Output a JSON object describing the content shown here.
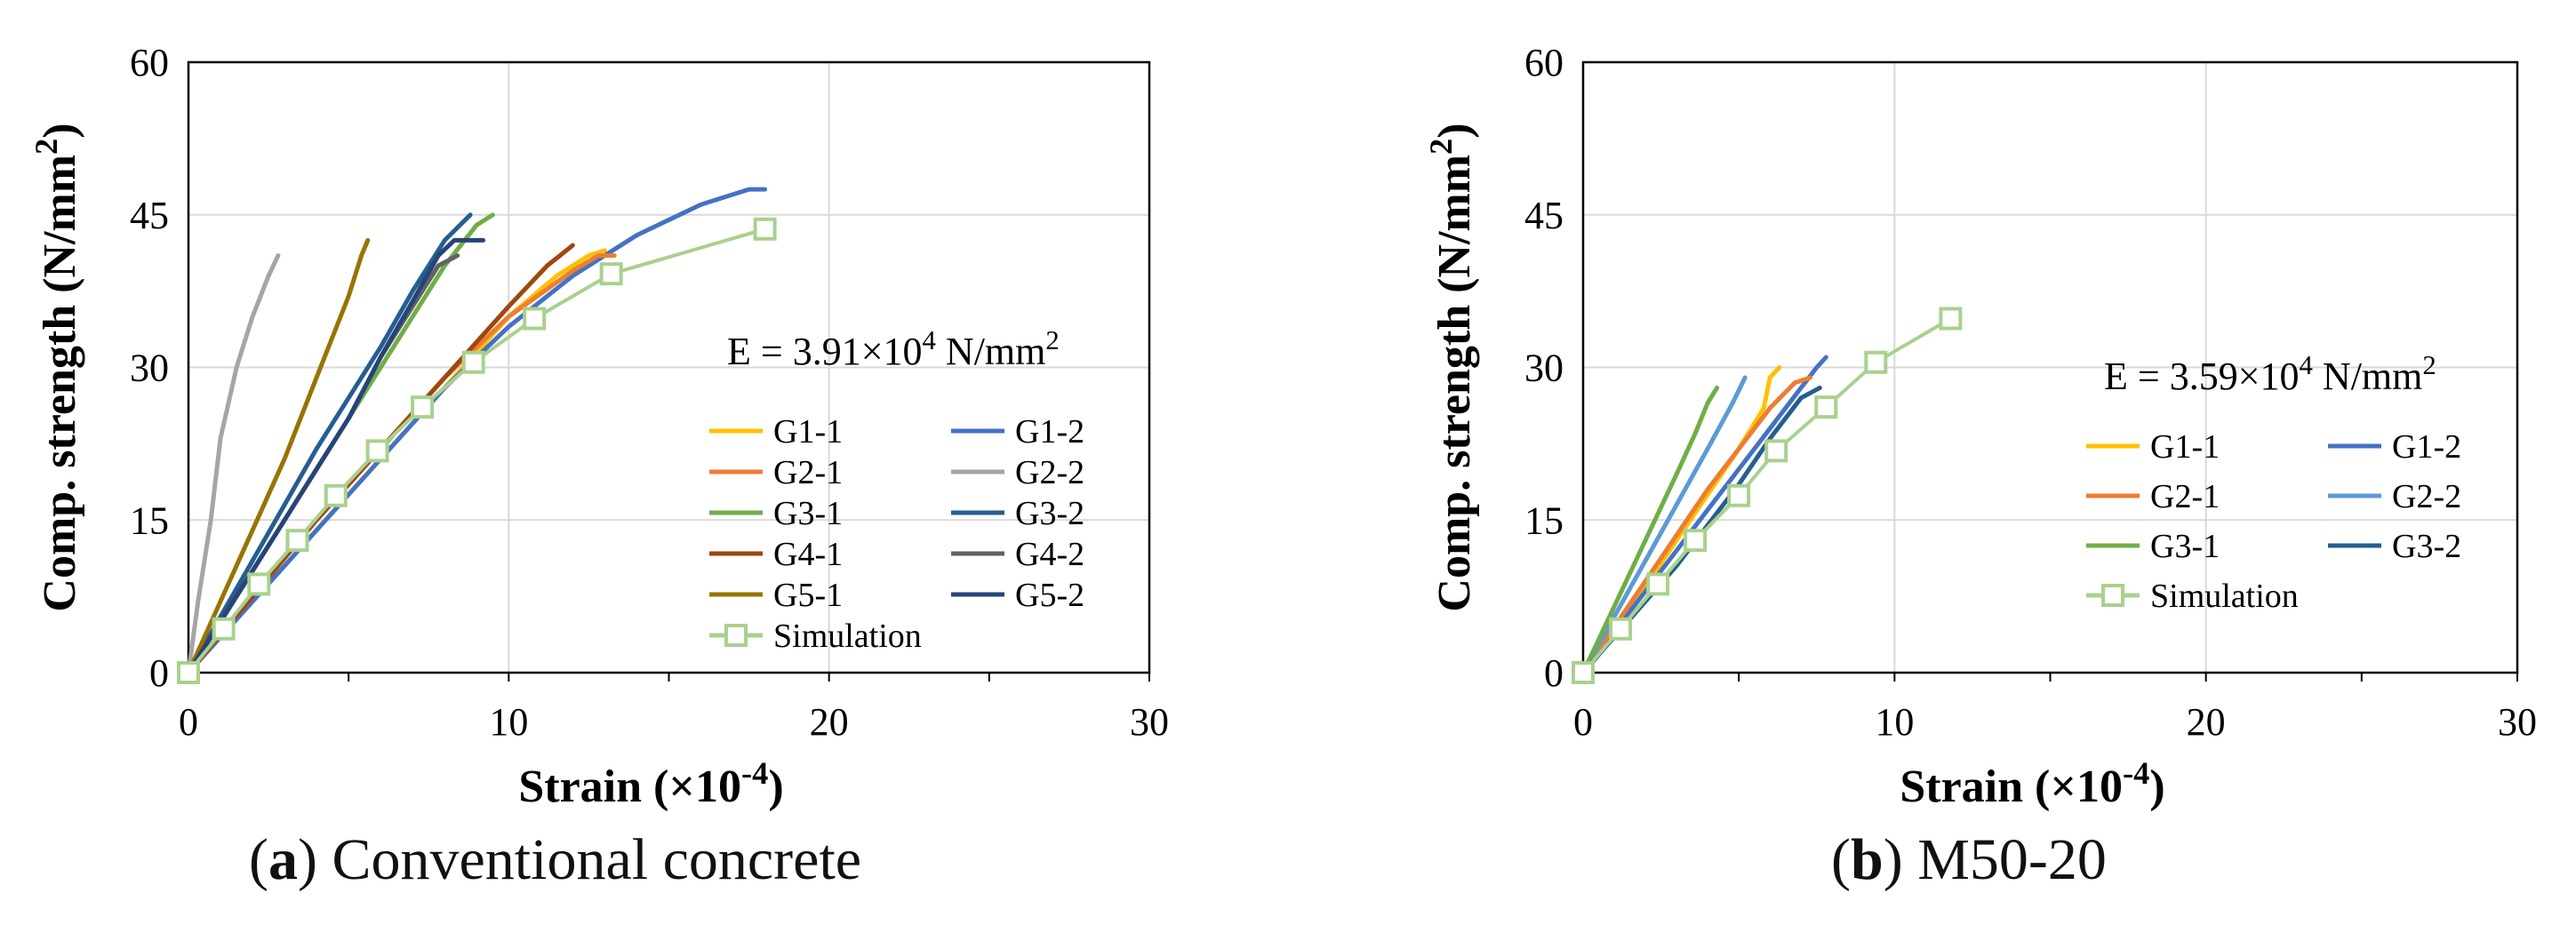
{
  "chart_data": [
    {
      "type": "line",
      "title": "",
      "xlabel": "Strain (×10⁻⁴)",
      "ylabel": "Comp. strength (N/mm²)",
      "xlim": [
        0,
        30
      ],
      "ylim": [
        0,
        60
      ],
      "xticks": [
        "0",
        "10",
        "20",
        "30"
      ],
      "yticks": [
        "0",
        "15",
        "30",
        "45",
        "60"
      ],
      "grid": true,
      "annotation": "E = 3.91×10⁴ N/mm²",
      "legend_position": "center-right",
      "legend_columns": 2,
      "series": [
        {
          "name": "G1-1",
          "color": "#ffc000",
          "marker": "none",
          "x": [
            0,
            2,
            4,
            6,
            8,
            10,
            11.5,
            12.5,
            13.0
          ],
          "y": [
            0,
            7,
            14,
            21,
            28,
            35,
            39,
            41,
            41.5
          ]
        },
        {
          "name": "G1-2",
          "color": "#4472c4",
          "marker": "none",
          "x": [
            0,
            2,
            4,
            6,
            8,
            10,
            12,
            14,
            16,
            17.5,
            18.0
          ],
          "y": [
            0,
            7,
            14,
            21,
            28,
            34,
            39,
            43,
            46,
            47.5,
            47.5
          ]
        },
        {
          "name": "G2-1",
          "color": "#ed7d31",
          "marker": "none",
          "x": [
            0,
            2,
            4,
            6,
            8,
            10,
            12,
            12.8,
            13.3
          ],
          "y": [
            0,
            7.5,
            15,
            22,
            29,
            35,
            39.5,
            41,
            41
          ]
        },
        {
          "name": "G2-2",
          "color": "#a5a5a5",
          "marker": "none",
          "x": [
            0,
            0.3,
            0.7,
            1.0,
            1.5,
            2.0,
            2.5,
            2.8
          ],
          "y": [
            0,
            7,
            15,
            23,
            30,
            35,
            39,
            41
          ]
        },
        {
          "name": "G3-1",
          "color": "#70ad47",
          "marker": "none",
          "x": [
            0,
            1,
            2,
            3,
            4,
            5,
            6,
            7,
            8,
            9.0,
            9.5
          ],
          "y": [
            0,
            5,
            10,
            15,
            20,
            25,
            30,
            35,
            40,
            44,
            45
          ]
        },
        {
          "name": "G3-2",
          "color": "#255e91",
          "marker": "none",
          "x": [
            0,
            1,
            2,
            3,
            4,
            5,
            6,
            7,
            8,
            8.8
          ],
          "y": [
            0,
            5.5,
            11,
            16.5,
            22,
            27,
            32,
            37.5,
            42.5,
            45
          ]
        },
        {
          "name": "G4-1",
          "color": "#9e480e",
          "marker": "none",
          "x": [
            0,
            2,
            4,
            6,
            8,
            10,
            11.2,
            12.0
          ],
          "y": [
            0,
            7.5,
            15,
            22,
            29,
            36,
            40,
            42
          ]
        },
        {
          "name": "G4-2",
          "color": "#636363",
          "marker": "none",
          "x": [
            0,
            1,
            2,
            3,
            4,
            5,
            6,
            7,
            7.8,
            8.4
          ],
          "y": [
            0,
            5,
            10,
            15,
            20,
            25,
            31,
            36,
            40,
            41
          ]
        },
        {
          "name": "G5-1",
          "color": "#997300",
          "marker": "none",
          "x": [
            0,
            1,
            2,
            3,
            4,
            5,
            5.4,
            5.6
          ],
          "y": [
            0,
            7,
            14,
            21,
            29,
            37,
            41,
            42.5
          ]
        },
        {
          "name": "G5-2",
          "color": "#264478",
          "marker": "none",
          "x": [
            0,
            1,
            2,
            3,
            4,
            5,
            6,
            7,
            7.8,
            8.3,
            9.2
          ],
          "y": [
            0,
            5,
            10,
            15,
            20,
            25,
            31,
            36.5,
            41,
            42.5,
            42.5
          ]
        },
        {
          "name": "Simulation",
          "color": "#a9d18e",
          "marker": "square",
          "x": [
            0,
            1.1,
            2.2,
            3.4,
            4.6,
            5.9,
            7.3,
            8.9,
            10.8,
            13.2,
            18.0
          ],
          "y": [
            0,
            4.3,
            8.7,
            13.0,
            17.4,
            21.8,
            26.1,
            30.5,
            34.8,
            39.2,
            43.6
          ]
        }
      ]
    },
    {
      "type": "line",
      "title": "",
      "xlabel": "Strain (×10⁻⁴)",
      "ylabel": "Comp. strength (N/mm²)",
      "xlim": [
        0,
        30
      ],
      "ylim": [
        0,
        60
      ],
      "xticks": [
        "0",
        "10",
        "20",
        "30"
      ],
      "yticks": [
        "0",
        "15",
        "30",
        "45",
        "60"
      ],
      "grid": true,
      "annotation": "E = 3.59×10⁴ N/mm²",
      "legend_position": "center-right",
      "legend_columns": 2,
      "series": [
        {
          "name": "G1-1",
          "color": "#ffc000",
          "marker": "none",
          "x": [
            0,
            1,
            2,
            3,
            4,
            5,
            5.8,
            6.0,
            6.3
          ],
          "y": [
            0,
            4,
            8.5,
            13,
            17.5,
            22,
            26,
            29,
            30
          ]
        },
        {
          "name": "G1-2",
          "color": "#4472c4",
          "marker": "none",
          "x": [
            0,
            1,
            2,
            3,
            4,
            5,
            6,
            7,
            7.5,
            7.8
          ],
          "y": [
            0,
            4,
            8,
            12,
            16,
            20,
            24,
            28,
            30,
            31
          ]
        },
        {
          "name": "G2-1",
          "color": "#ed7d31",
          "marker": "none",
          "x": [
            0,
            1,
            2,
            3,
            4,
            5,
            6,
            6.8,
            7.3
          ],
          "y": [
            0,
            4.5,
            9,
            13.5,
            18,
            22,
            26,
            28.5,
            29
          ]
        },
        {
          "name": "G2-2",
          "color": "#5b9bd5",
          "marker": "none",
          "x": [
            0,
            1,
            2,
            3,
            4,
            4.8,
            5.2
          ],
          "y": [
            0,
            5.5,
            11,
            16.5,
            22,
            26.5,
            29
          ]
        },
        {
          "name": "G3-1",
          "color": "#70ad47",
          "marker": "none",
          "x": [
            0,
            1,
            2,
            3,
            3.6,
            4.0,
            4.3
          ],
          "y": [
            0,
            6.5,
            13,
            19.5,
            23.5,
            26.5,
            28
          ]
        },
        {
          "name": "G3-2",
          "color": "#255e91",
          "marker": "none",
          "x": [
            0,
            1,
            2,
            3,
            4,
            5,
            6,
            7,
            7.6
          ],
          "y": [
            0,
            3.5,
            7,
            10.5,
            14.5,
            18.5,
            23,
            27,
            28
          ]
        },
        {
          "name": "Simulation",
          "color": "#a9d18e",
          "marker": "square",
          "x": [
            0,
            1.2,
            2.4,
            3.6,
            5.0,
            6.2,
            7.8,
            9.4,
            11.8
          ],
          "y": [
            0,
            4.3,
            8.7,
            13.0,
            17.4,
            21.8,
            26.1,
            30.5,
            34.8
          ]
        }
      ]
    }
  ],
  "captions": {
    "a": {
      "letter": "a",
      "text": " Conventional concrete"
    },
    "b": {
      "letter": "b",
      "text": " M50-20"
    }
  }
}
